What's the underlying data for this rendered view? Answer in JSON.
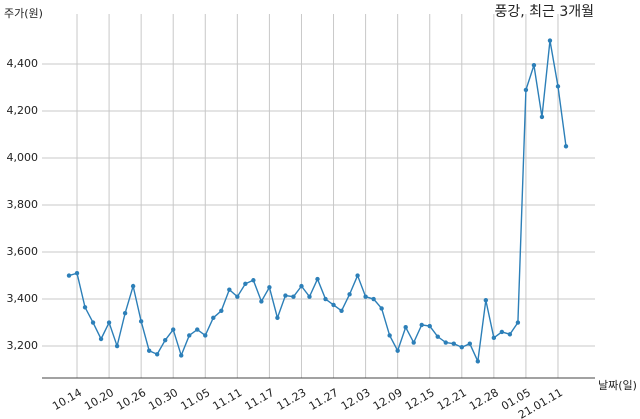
{
  "chart_data": {
    "type": "line",
    "title": "풍강, 최근 3개월",
    "y_label": "주가(원)",
    "x_label": "날짜(일)",
    "categories": [
      null,
      "10.14",
      null,
      null,
      null,
      "10.20",
      null,
      null,
      null,
      "10.26",
      null,
      null,
      null,
      "10.30",
      null,
      null,
      null,
      "11.05",
      null,
      null,
      null,
      "11.11",
      null,
      null,
      null,
      "11.17",
      null,
      null,
      null,
      "11.23",
      null,
      null,
      null,
      "11.27",
      null,
      null,
      null,
      "12.03",
      null,
      null,
      null,
      "12.09",
      null,
      null,
      null,
      "12.15",
      null,
      null,
      null,
      "12.21",
      null,
      null,
      null,
      "12.28",
      null,
      null,
      null,
      "01.05",
      null,
      null,
      null,
      "21.01.11",
      null
    ],
    "series": [
      {
        "name": "풍강",
        "color": "#2c7fb8",
        "values": [
          3500,
          3510,
          3365,
          3300,
          3230,
          3300,
          3200,
          3340,
          3455,
          3305,
          3180,
          3165,
          3225,
          3270,
          3160,
          3245,
          3270,
          3245,
          3320,
          3350,
          3440,
          3410,
          3465,
          3480,
          3390,
          3450,
          3320,
          3415,
          3410,
          3455,
          3410,
          3485,
          3400,
          3375,
          3350,
          3420,
          3500,
          3410,
          3400,
          3360,
          3245,
          3180,
          3280,
          3215,
          3290,
          3285,
          3240,
          3215,
          3210,
          3195,
          3210,
          3135,
          3395,
          3235,
          3260,
          3250,
          3300,
          4290,
          4395,
          4175,
          4500,
          4305,
          4050
        ]
      }
    ],
    "ylim": [
      3064,
      4613
    ],
    "yticks": [
      {
        "value": 3200,
        "label": "3,200"
      },
      {
        "value": 3400,
        "label": "3,400"
      },
      {
        "value": 3600,
        "label": "3,600"
      },
      {
        "value": 3800,
        "label": "3,800"
      },
      {
        "value": 4000,
        "label": "4,000"
      },
      {
        "value": 4200,
        "label": "4,200"
      },
      {
        "value": 4400,
        "label": "4,400"
      }
    ],
    "grid": true
  }
}
